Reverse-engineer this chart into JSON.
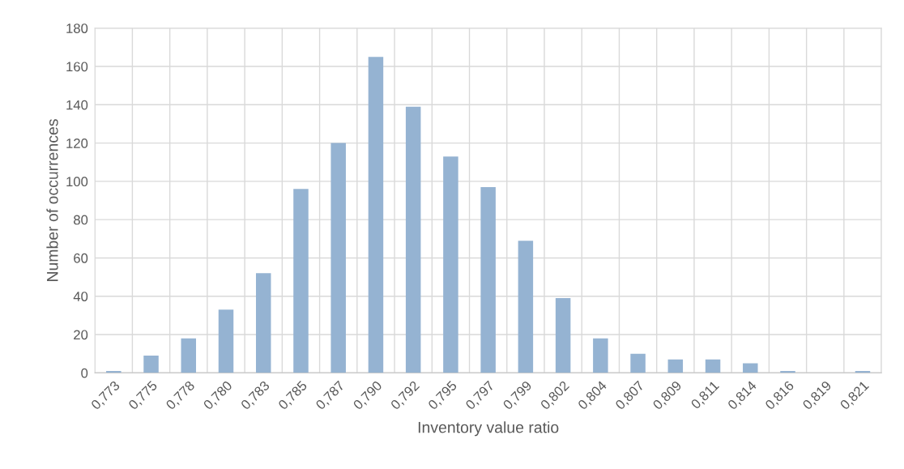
{
  "chart_data": {
    "type": "bar",
    "xlabel": "Inventory value ratio",
    "ylabel": "Number of occurrences",
    "categories": [
      "0,773",
      "0,775",
      "0,778",
      "0,780",
      "0,783",
      "0,785",
      "0,787",
      "0,790",
      "0,792",
      "0,795",
      "0,797",
      "0,799",
      "0,802",
      "0,804",
      "0,807",
      "0,809",
      "0,811",
      "0,814",
      "0,816",
      "0,819",
      "0,821"
    ],
    "values": [
      1,
      9,
      18,
      33,
      52,
      96,
      120,
      165,
      139,
      113,
      97,
      69,
      39,
      18,
      10,
      7,
      7,
      5,
      1,
      0,
      1
    ],
    "color": "#95b3d2",
    "ylim": [
      0,
      180
    ],
    "yticks": [
      0,
      20,
      40,
      60,
      80,
      100,
      120,
      140,
      160,
      180
    ],
    "grid": true
  }
}
